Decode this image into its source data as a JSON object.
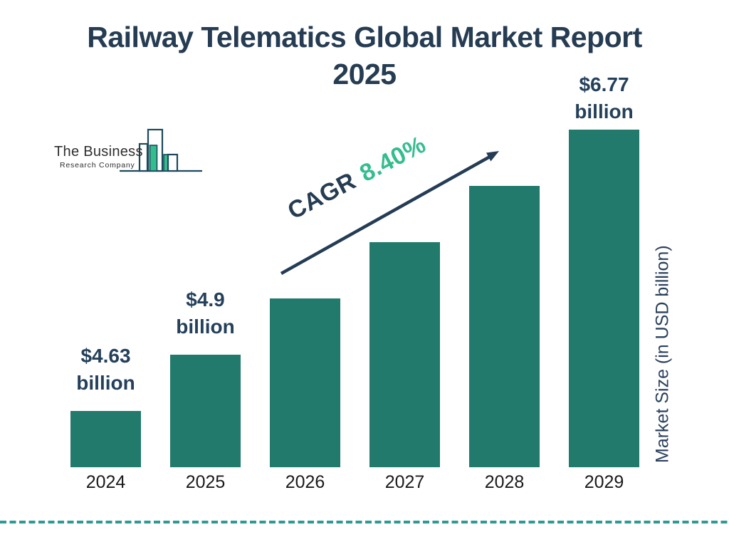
{
  "title": {
    "line1": "Railway Telematics Global Market Report",
    "line2": "2025"
  },
  "logo": {
    "line1": "The Business",
    "line2": "Research Company"
  },
  "annotation": {
    "cagr_label": "CAGR",
    "cagr_value": "8.40%"
  },
  "y_axis_label": "Market Size (in USD billion)",
  "colors": {
    "bar": "#217A6C",
    "accent_green": "#35BD8E",
    "navy_text": "#24405B",
    "title_navy": "#253C52",
    "dashed_line": "#2E9A93",
    "arrow_navy": "#243C55",
    "year_text": "#1A1A1A"
  },
  "chart_data": {
    "type": "bar",
    "title": "Railway Telematics Global Market Report 2025",
    "categories": [
      "2024",
      "2025",
      "2026",
      "2027",
      "2028",
      "2029"
    ],
    "values": [
      4.63,
      4.9,
      5.31,
      5.76,
      6.24,
      6.77
    ],
    "bar_value_labels": [
      "$4.63 billion",
      "$4.9 billion",
      null,
      null,
      null,
      "$6.77 billion"
    ],
    "cagr_percent": 8.4,
    "xlabel": "",
    "ylabel": "Market Size (in USD billion)",
    "legend": false,
    "grid": false
  }
}
